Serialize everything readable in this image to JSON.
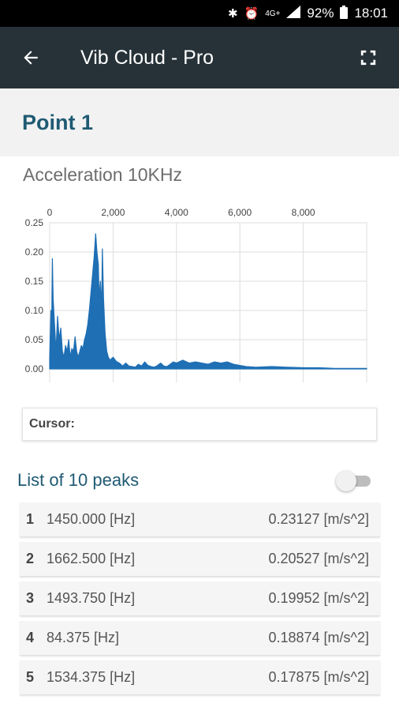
{
  "status_bar": {
    "network": "4G+",
    "battery": "92%",
    "time": "18:01"
  },
  "app_bar": {
    "title": "Vib Cloud - Pro"
  },
  "point": {
    "title": "Point 1"
  },
  "chart": {
    "title": "Acceleration 10KHz"
  },
  "chart_data": {
    "type": "line",
    "title": "Acceleration 10KHz",
    "xlabel": "",
    "ylabel": "",
    "xlim": [
      0,
      10000
    ],
    "ylim": [
      0,
      0.25
    ],
    "x_ticks": [
      "0",
      "2,000",
      "4,000",
      "6,000",
      "8,000"
    ],
    "y_ticks": [
      "0.25",
      "0.20",
      "0.15",
      "0.10",
      "0.05",
      "0.00"
    ],
    "x_axis_position": "top",
    "grid": true,
    "series": [
      {
        "color": "#1f6fb4",
        "x": [
          0,
          40,
          60,
          84.375,
          110,
          150,
          200,
          250,
          300,
          350,
          400,
          450,
          500,
          550,
          600,
          650,
          700,
          750,
          800,
          850,
          900,
          950,
          1000,
          1050,
          1100,
          1150,
          1200,
          1250,
          1300,
          1350,
          1400,
          1450,
          1493.75,
          1534.375,
          1560,
          1600,
          1640,
          1662.5,
          1700,
          1750,
          1800,
          1850,
          1900,
          2000,
          2100,
          2200,
          2300,
          2400,
          2500,
          2600,
          2700,
          2800,
          2900,
          3000,
          3100,
          3200,
          3300,
          3400,
          3500,
          3600,
          3700,
          3800,
          3900,
          4000,
          4200,
          4400,
          4600,
          4800,
          5000,
          5200,
          5400,
          5600,
          5800,
          6000,
          6200,
          6500,
          7000,
          7500,
          8000,
          8500,
          9000,
          9500,
          10000
        ],
        "y": [
          0.02,
          0.1,
          0.06,
          0.18874,
          0.12,
          0.08,
          0.03,
          0.09,
          0.05,
          0.07,
          0.03,
          0.02,
          0.04,
          0.03,
          0.05,
          0.02,
          0.035,
          0.03,
          0.055,
          0.03,
          0.02,
          0.03,
          0.04,
          0.035,
          0.05,
          0.06,
          0.075,
          0.1,
          0.13,
          0.16,
          0.19,
          0.23127,
          0.19952,
          0.17875,
          0.12,
          0.15,
          0.1,
          0.20527,
          0.12,
          0.06,
          0.03,
          0.02,
          0.015,
          0.02,
          0.013,
          0.01,
          0.005,
          0.01,
          0.005,
          0.004,
          0.003,
          0.008,
          0.005,
          0.012,
          0.006,
          0.004,
          0.003,
          0.006,
          0.01,
          0.005,
          0.004,
          0.008,
          0.012,
          0.01,
          0.015,
          0.01,
          0.012,
          0.01,
          0.008,
          0.012,
          0.01,
          0.012,
          0.008,
          0.006,
          0.004,
          0.003,
          0.004,
          0.003,
          0.002,
          0.002,
          0.001,
          0.001,
          0.001
        ]
      }
    ]
  },
  "cursor": {
    "label": "Cursor:"
  },
  "peaks": {
    "title": "List of 10 peaks",
    "items": [
      {
        "index": "1",
        "frequency": "1450.000 [Hz]",
        "amplitude": "0.23127 [m/s^2]"
      },
      {
        "index": "2",
        "frequency": "1662.500 [Hz]",
        "amplitude": "0.20527 [m/s^2]"
      },
      {
        "index": "3",
        "frequency": "1493.750 [Hz]",
        "amplitude": "0.19952 [m/s^2]"
      },
      {
        "index": "4",
        "frequency": "84.375 [Hz]",
        "amplitude": "0.18874 [m/s^2]"
      },
      {
        "index": "5",
        "frequency": "1534.375 [Hz]",
        "amplitude": "0.17875 [m/s^2]"
      }
    ]
  }
}
